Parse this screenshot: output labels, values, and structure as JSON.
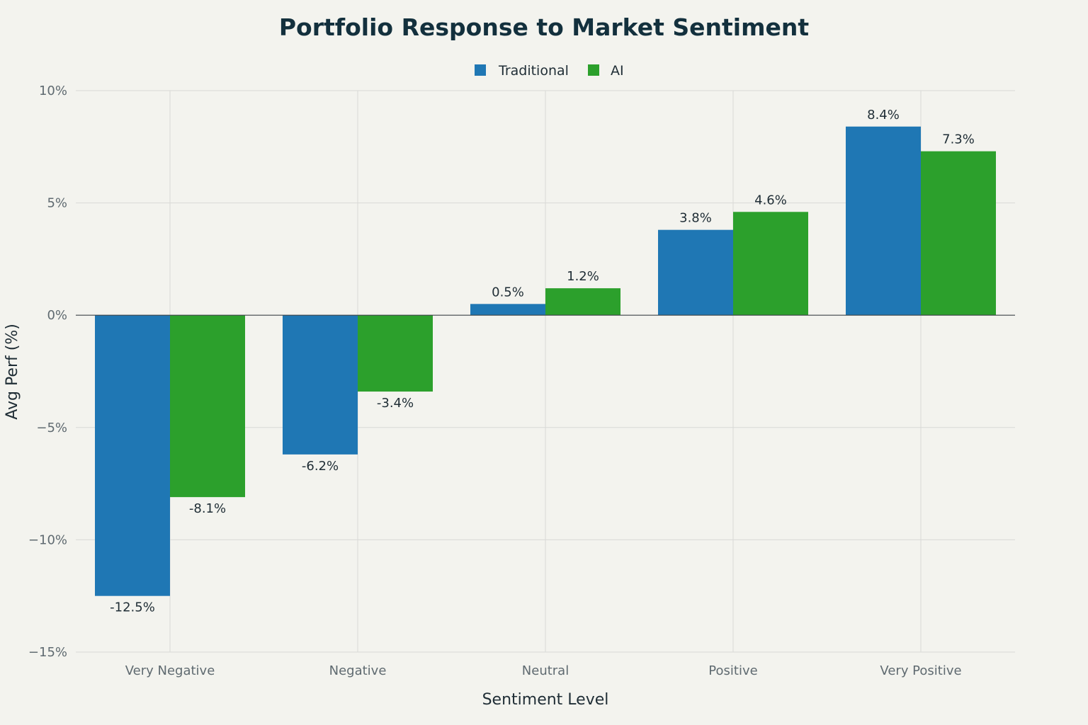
{
  "chart_data": {
    "type": "bar",
    "title": "Portfolio Response to Market Sentiment",
    "xlabel": "Sentiment Level",
    "ylabel": "Avg Perf (%)",
    "categories": [
      "Very Negative",
      "Negative",
      "Neutral",
      "Positive",
      "Very Positive"
    ],
    "series": [
      {
        "name": "Traditional",
        "color": "#1f77b4",
        "values": [
          -12.5,
          -6.2,
          0.5,
          3.8,
          8.4
        ],
        "labels": [
          "-12.5%",
          "-6.2%",
          "0.5%",
          "3.8%",
          "8.4%"
        ]
      },
      {
        "name": "AI",
        "color": "#2ca02c",
        "values": [
          -8.1,
          -3.4,
          1.2,
          4.6,
          7.3
        ],
        "labels": [
          "-8.1%",
          "-3.4%",
          "1.2%",
          "4.6%",
          "7.3%"
        ]
      }
    ],
    "ylim": [
      -15,
      10
    ],
    "yticks": [
      10,
      5,
      0,
      -5,
      -10,
      -15
    ],
    "ytick_labels": [
      "10%",
      "5%",
      "0%",
      "−5%",
      "−10%",
      "−15%"
    ],
    "grid": true,
    "legend_position": "top-center"
  }
}
